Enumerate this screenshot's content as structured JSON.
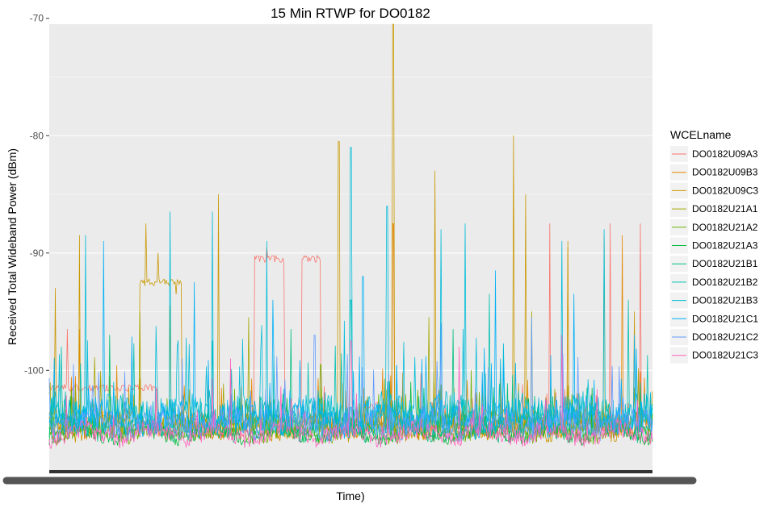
{
  "chart_data": {
    "type": "line",
    "title": "15 Min RTWP for DO0182",
    "xlabel": "Time)",
    "ylabel": "Received Total Wideband Power (dBm)",
    "ylim": [
      -108.5,
      -70.5
    ],
    "yticks": [
      -70,
      -80,
      -90,
      -100
    ],
    "x_tick_labels_visible": false,
    "n_points": 600,
    "grid": true,
    "panel_background": "#ebebeb",
    "grid_color": "#ffffff",
    "legend": {
      "title": "WCELname",
      "position": "right"
    },
    "series": [
      {
        "name": "DO0182U09A3",
        "color": "#F8766D",
        "base": -104.8,
        "noise": 0.8,
        "spikes": [
          [
            0.03,
            -96.5
          ],
          [
            0.36,
            -89.5
          ],
          [
            0.42,
            -90.5
          ],
          [
            0.57,
            -87.5
          ],
          [
            0.83,
            -87.5
          ],
          [
            0.93,
            -87.5
          ],
          [
            0.98,
            -87.5
          ]
        ],
        "plateaus": [
          [
            0.0,
            0.18,
            -101.5
          ],
          [
            0.34,
            0.39,
            -90.5
          ],
          [
            0.42,
            0.45,
            -90.5
          ],
          [
            0.52,
            0.55,
            -103.0
          ]
        ]
      },
      {
        "name": "DO0182U09B3",
        "color": "#E58700",
        "base": -104.6,
        "noise": 0.9,
        "spikes": [
          [
            0.05,
            -96.5
          ],
          [
            0.57,
            -87.5
          ],
          [
            0.86,
            -89.5
          ],
          [
            0.95,
            -88.5
          ]
        ],
        "plateaus": []
      },
      {
        "name": "DO0182U09C3",
        "color": "#C99800",
        "base": -104.9,
        "noise": 0.8,
        "spikes": [
          [
            0.01,
            -93.0
          ],
          [
            0.05,
            -88.5
          ],
          [
            0.16,
            -87.5
          ],
          [
            0.18,
            -90.0
          ],
          [
            0.21,
            -93.5
          ],
          [
            0.28,
            -85.0
          ],
          [
            0.48,
            -80.5
          ],
          [
            0.57,
            -70.0
          ],
          [
            0.64,
            -83.0
          ],
          [
            0.77,
            -80.0
          ],
          [
            0.79,
            -85.0
          ],
          [
            0.86,
            -89.0
          ],
          [
            0.92,
            -88.5
          ],
          [
            0.97,
            -95.0
          ]
        ],
        "plateaus": [
          [
            0.15,
            0.22,
            -92.5
          ]
        ]
      },
      {
        "name": "DO0182U21A1",
        "color": "#A3A500",
        "base": -104.5,
        "noise": 0.9,
        "spikes": [
          [
            0.15,
            -95.0
          ],
          [
            0.2,
            -94.5
          ],
          [
            0.33,
            -95.5
          ],
          [
            0.63,
            -95.5
          ],
          [
            0.8,
            -95.0
          ]
        ],
        "plateaus": []
      },
      {
        "name": "DO0182U21A2",
        "color": "#6BB100",
        "base": -105.2,
        "noise": 0.7,
        "spikes": [
          [
            0.1,
            -100.5
          ],
          [
            0.45,
            -99.5
          ],
          [
            0.7,
            -100.0
          ]
        ],
        "plateaus": []
      },
      {
        "name": "DO0182U21A3",
        "color": "#00BA38",
        "base": -105.4,
        "noise": 0.6,
        "spikes": [
          [
            0.3,
            -101.5
          ],
          [
            0.6,
            -101.0
          ],
          [
            0.9,
            -101.5
          ]
        ],
        "plateaus": []
      },
      {
        "name": "DO0182U21B1",
        "color": "#00BF7D",
        "base": -104.9,
        "noise": 0.9,
        "spikes": [
          [
            0.1,
            -97.0
          ],
          [
            0.4,
            -96.5
          ],
          [
            0.67,
            -96.5
          ]
        ],
        "plateaus": []
      },
      {
        "name": "DO0182U21B2",
        "color": "#00C0AF",
        "base": -104.0,
        "noise": 1.3,
        "spikes": [
          [
            0.02,
            -98.0
          ],
          [
            0.27,
            -97.5
          ],
          [
            0.5,
            -94.0
          ],
          [
            0.73,
            -93.5
          ],
          [
            0.96,
            -94.0
          ]
        ],
        "plateaus": []
      },
      {
        "name": "DO0182U21B3",
        "color": "#00BCD8",
        "base": -103.6,
        "noise": 1.5,
        "spikes": [
          [
            0.06,
            -88.5
          ],
          [
            0.2,
            -86.5
          ],
          [
            0.27,
            -86.5
          ],
          [
            0.36,
            -89.0
          ],
          [
            0.5,
            -81.0
          ],
          [
            0.56,
            -86.0
          ],
          [
            0.65,
            -88.0
          ],
          [
            0.69,
            -87.5
          ],
          [
            0.85,
            -89.0
          ],
          [
            0.92,
            -88.0
          ]
        ],
        "plateaus": []
      },
      {
        "name": "DO0182U21C1",
        "color": "#00B0F6",
        "base": -104.2,
        "noise": 1.3,
        "spikes": [
          [
            0.09,
            -89.0
          ],
          [
            0.24,
            -92.5
          ],
          [
            0.37,
            -94.0
          ],
          [
            0.52,
            -92.0
          ],
          [
            0.74,
            -91.5
          ],
          [
            0.87,
            -93.5
          ],
          [
            0.97,
            -97.0
          ]
        ],
        "plateaus": []
      },
      {
        "name": "DO0182U21C2",
        "color": "#619CFF",
        "base": -104.6,
        "noise": 1.1,
        "spikes": [
          [
            0.04,
            -99.5
          ],
          [
            0.22,
            -99.0
          ],
          [
            0.44,
            -97.0
          ],
          [
            0.65,
            -96.0
          ],
          [
            0.8,
            -95.5
          ]
        ],
        "plateaus": []
      },
      {
        "name": "DO0182U21C3",
        "color": "#FF62BC",
        "base": -105.4,
        "noise": 0.8,
        "spikes": [
          [
            0.3,
            -99.0
          ],
          [
            0.5,
            -97.5
          ],
          [
            0.68,
            -98.0
          ],
          [
            0.85,
            -97.0
          ]
        ],
        "plateaus": []
      }
    ]
  }
}
